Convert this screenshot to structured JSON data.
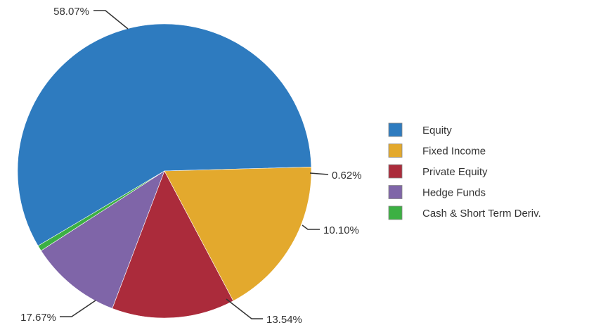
{
  "chart_data": {
    "type": "pie",
    "title": "",
    "categories": [
      "Equity",
      "Cash & Short Term Deriv.",
      "Hedge Funds",
      "Private Equity",
      "Fixed Income"
    ],
    "values": [
      58.07,
      0.62,
      10.1,
      13.54,
      17.67
    ],
    "data_labels": [
      "58.07%",
      "0.62%",
      "10.10%",
      "13.54%",
      "17.67%"
    ],
    "colors": [
      "#2e7bbf",
      "#3cb043",
      "#7f65a8",
      "#ab2b3b",
      "#e3a92d"
    ],
    "legend": {
      "placement": "right",
      "items": [
        {
          "label": "Equity",
          "color": "#2e7bbf"
        },
        {
          "label": "Fixed Income",
          "color": "#e3a92d"
        },
        {
          "label": "Private Equity",
          "color": "#ab2b3b"
        },
        {
          "label": "Hedge Funds",
          "color": "#7f65a8"
        },
        {
          "label": "Cash & Short Term Deriv.",
          "color": "#3cb043"
        }
      ]
    }
  }
}
